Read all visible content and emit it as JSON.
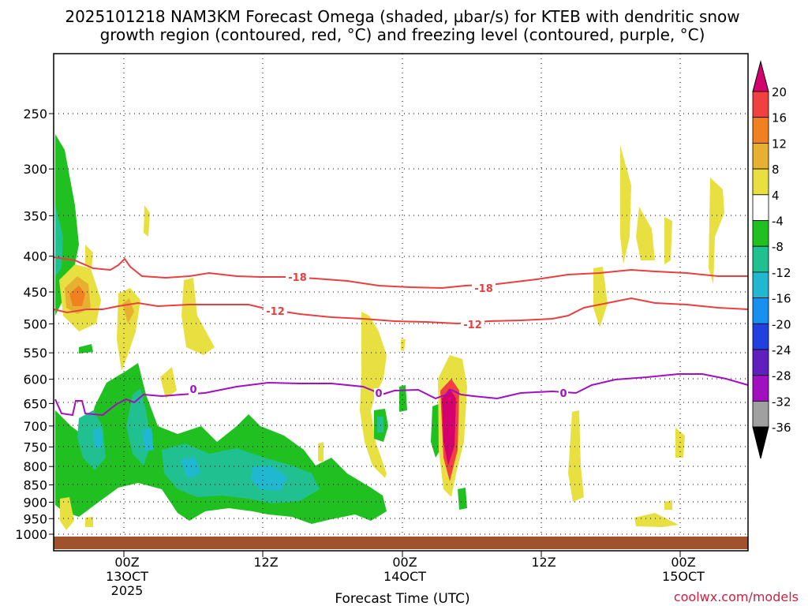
{
  "chart_data": {
    "type": "heatmap",
    "title_line1": "2025101218 NAM3KM Forecast Omega (shaded, µbar/s) for KTEB with dendritic snow",
    "title_line2": "growth region (contoured, red, °C) and freezing level (contoured, purple, °C)",
    "xlabel": "Forecast Time (UTC)",
    "credit": "coolwx.com/models",
    "y_axis": {
      "scale": "pressure (log)",
      "ticks": [
        250,
        300,
        350,
        400,
        450,
        500,
        550,
        600,
        650,
        700,
        750,
        800,
        850,
        900,
        950,
        1000
      ]
    },
    "x_axis": {
      "ticks": [
        {
          "label": "00Z",
          "sub1": "13OCT",
          "sub2": "2025"
        },
        {
          "label": "12Z",
          "sub1": "",
          "sub2": ""
        },
        {
          "label": "00Z",
          "sub1": "14OCT",
          "sub2": ""
        },
        {
          "label": "12Z",
          "sub1": "",
          "sub2": ""
        },
        {
          "label": "00Z",
          "sub1": "15OCT",
          "sub2": ""
        }
      ]
    },
    "colorbar": {
      "labels": [
        "20",
        "16",
        "12",
        "8",
        "4",
        "-4",
        "-8",
        "-12",
        "-16",
        "-20",
        "-24",
        "-28",
        "-32",
        "-36"
      ],
      "colors": [
        "#d4006e",
        "#f04040",
        "#f08020",
        "#e8b030",
        "#e8e040",
        "#ffffff",
        "#20c020",
        "#20c090",
        "#20b8d0",
        "#1890f0",
        "#2040e0",
        "#6020c0",
        "#a010c0",
        "#a0a0a0",
        "#000000"
      ]
    },
    "contours": [
      {
        "label": "-18",
        "color": "#e84040"
      },
      {
        "label": "-12",
        "color": "#e84040"
      },
      {
        "label": "0",
        "color": "#a010c0"
      }
    ]
  }
}
